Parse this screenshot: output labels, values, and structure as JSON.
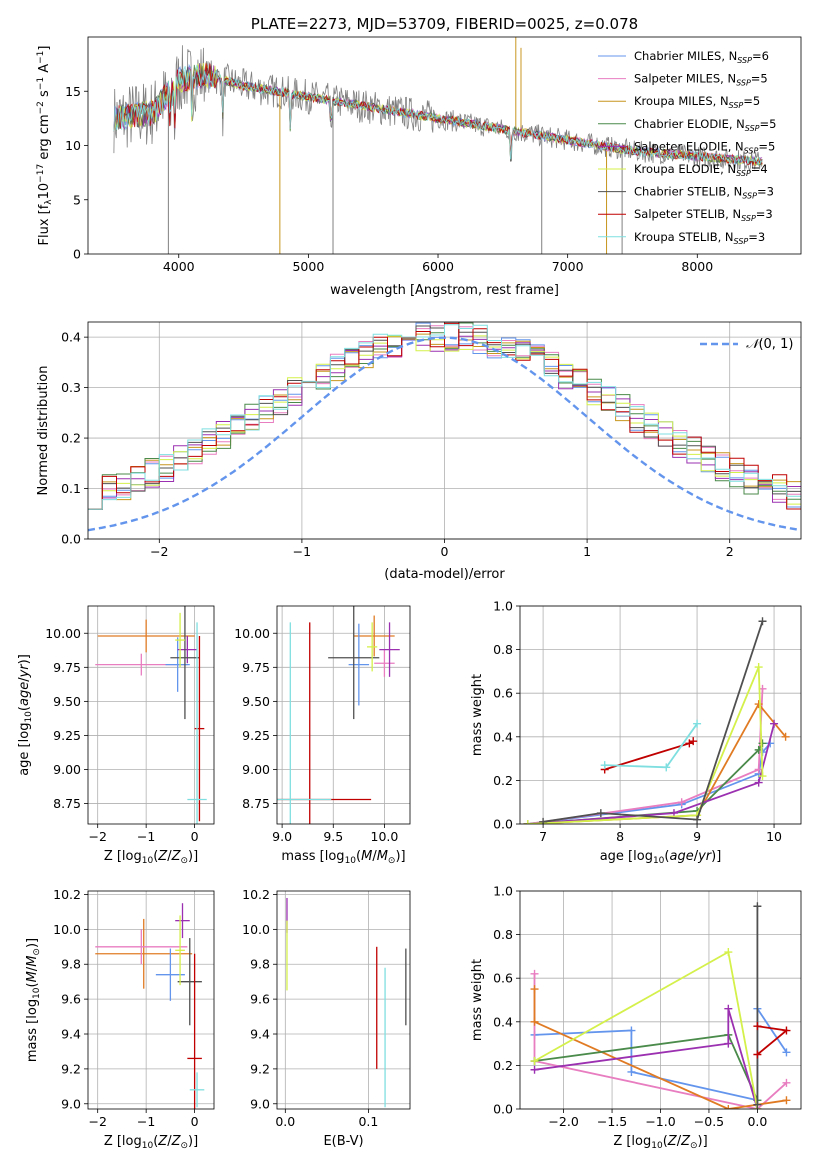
{
  "chart_data": [
    {
      "id": "spectrum",
      "type": "line",
      "title": "PLATE=2273, MJD=53709, FIBERID=0025, z=0.078",
      "xlabel": "wavelength [Angstrom, rest frame]",
      "ylabel": "Flux [fλ10⁻¹⁷ erg cm⁻² s⁻¹ A⁻¹]",
      "xlim": [
        3300,
        8800
      ],
      "ylim": [
        0,
        20
      ],
      "xticks": [
        4000,
        5000,
        6000,
        7000,
        8000
      ],
      "yticks": [
        0,
        5,
        10,
        15
      ],
      "grid": false,
      "legend_position": "top-right",
      "data_color": "#808080",
      "continuum": [
        [
          3500,
          12.5
        ],
        [
          3800,
          13
        ],
        [
          4000,
          16
        ],
        [
          4200,
          16.5
        ],
        [
          4500,
          15.5
        ],
        [
          5000,
          14.5
        ],
        [
          5500,
          13.5
        ],
        [
          6000,
          12.5
        ],
        [
          6500,
          11.5
        ],
        [
          7000,
          10.5
        ],
        [
          7500,
          9.5
        ],
        [
          8000,
          9
        ],
        [
          8500,
          8.5
        ]
      ],
      "absorption_lines": [
        3934,
        3969,
        4102,
        4340,
        4861,
        5175,
        6563
      ],
      "series": [
        {
          "name": "Chabrier MILES, N",
          "sub": "SSP",
          "suffix": "=6",
          "color": "#6495ed"
        },
        {
          "name": "Salpeter MILES, N",
          "sub": "SSP",
          "suffix": "=5",
          "color": "#e87dc0"
        },
        {
          "name": "Kroupa MILES, N",
          "sub": "SSP",
          "suffix": "=5",
          "color": "#c8961e"
        },
        {
          "name": "Chabrier ELODIE, N",
          "sub": "SSP",
          "suffix": "=5",
          "color": "#4a8a4a"
        },
        {
          "name": "Salpeter ELODIE, N",
          "sub": "SSP",
          "suffix": "=5",
          "color": "#9b30b0"
        },
        {
          "name": "Kroupa ELODIE, N",
          "sub": "SSP",
          "suffix": "=4",
          "color": "#d4f04a"
        },
        {
          "name": "Chabrier STELIB, N",
          "sub": "SSP",
          "suffix": "=3",
          "color": "#505050"
        },
        {
          "name": "Salpeter STELIB, N",
          "sub": "SSP",
          "suffix": "=3",
          "color": "#c00000"
        },
        {
          "name": "Kroupa STELIB, N",
          "sub": "SSP",
          "suffix": "=3",
          "color": "#7fdfe0"
        }
      ]
    },
    {
      "id": "residuals",
      "type": "line",
      "xlabel": "(data-model)/error",
      "ylabel": "Normed distribution",
      "xlim": [
        -2.5,
        2.5
      ],
      "ylim": [
        0,
        0.43
      ],
      "xticks": [
        -2,
        -1,
        0,
        1,
        2
      ],
      "yticks": [
        0.0,
        0.1,
        0.2,
        0.3,
        0.4
      ],
      "grid": true,
      "legend_position": "top-right",
      "gaussian": {
        "label": "N(0,1)",
        "color": "#6495ed",
        "mean": 0,
        "sigma": 1
      },
      "histogram_colors": [
        "#6495ed",
        "#e87dc0",
        "#c8961e",
        "#4a8a4a",
        "#9b30b0",
        "#d4f04a",
        "#505050",
        "#c00000",
        "#7fdfe0"
      ]
    },
    {
      "id": "age_vs_Z",
      "type": "scatter",
      "xlabel": "Z [log10(Z/Z☉)]",
      "ylabel": "age  [log10(age/yr)]",
      "xlim": [
        -2.2,
        0.4
      ],
      "ylim": [
        8.6,
        10.2
      ],
      "xticks": [
        -2,
        -1,
        0
      ],
      "yticks": [
        8.75,
        9.0,
        9.25,
        9.5,
        9.75,
        10.0
      ],
      "grid": true,
      "points": [
        {
          "x": -1.0,
          "xerr": 1.0,
          "y": 9.98,
          "yerr": 0.12,
          "color": "#e07b24"
        },
        {
          "x": -1.1,
          "xerr": 0.95,
          "y": 9.77,
          "yerr": 0.08,
          "color": "#e87dc0"
        },
        {
          "x": -0.35,
          "xerr": 0.25,
          "y": 9.77,
          "yerr": 0.2,
          "color": "#6495ed"
        },
        {
          "x": -0.15,
          "xerr": 0.2,
          "y": 9.88,
          "yerr": 0.1,
          "color": "#9b30b0"
        },
        {
          "x": -0.2,
          "xerr": 0.3,
          "y": 9.82,
          "yerr": 0.45,
          "color": "#505050"
        },
        {
          "x": -0.3,
          "xerr": 0.1,
          "y": 9.95,
          "yerr": 0.2,
          "color": "#d4f04a"
        },
        {
          "x": 0.1,
          "xerr": 0.1,
          "y": 9.3,
          "yerr": 0.68,
          "color": "#c00000"
        },
        {
          "x": 0.05,
          "xerr": 0.2,
          "y": 8.78,
          "yerr": 1.3,
          "color": "#7fdfe0"
        }
      ]
    },
    {
      "id": "age_vs_mass",
      "type": "scatter",
      "xlabel": "mass [log10(M/M☉)]",
      "ylabel": "",
      "xlim": [
        8.95,
        10.25
      ],
      "ylim": [
        8.6,
        10.2
      ],
      "xticks": [
        9.0,
        9.5,
        10.0
      ],
      "yticks": [
        8.75,
        9.0,
        9.25,
        9.5,
        9.75,
        10.0
      ],
      "grid": true,
      "points": [
        {
          "x": 9.9,
          "xerr": 0.2,
          "y": 9.98,
          "yerr": 0.15,
          "color": "#e07b24"
        },
        {
          "x": 10.0,
          "xerr": 0.1,
          "y": 9.78,
          "yerr": 0.1,
          "color": "#e87dc0"
        },
        {
          "x": 9.75,
          "xerr": 0.1,
          "y": 9.77,
          "yerr": 0.3,
          "color": "#6495ed"
        },
        {
          "x": 10.05,
          "xerr": 0.1,
          "y": 9.88,
          "yerr": 0.2,
          "color": "#9b30b0"
        },
        {
          "x": 9.7,
          "xerr": 0.25,
          "y": 9.82,
          "yerr": 0.45,
          "color": "#505050"
        },
        {
          "x": 9.88,
          "xerr": 0.05,
          "y": 9.9,
          "yerr": 0.18,
          "color": "#d4f04a"
        },
        {
          "x": 9.27,
          "xerr": 0.6,
          "y": 8.78,
          "yerr": 1.3,
          "color": "#c00000"
        },
        {
          "x": 9.08,
          "xerr": 0.4,
          "y": 8.78,
          "yerr": 1.3,
          "color": "#7fdfe0"
        }
      ]
    },
    {
      "id": "weight_vs_age",
      "type": "line",
      "xlabel": "age  [log10(age/yr)]",
      "ylabel": "mass weight",
      "xlim": [
        6.7,
        10.35
      ],
      "ylim": [
        0,
        1.0
      ],
      "xticks": [
        7,
        8,
        9,
        10
      ],
      "yticks": [
        0.0,
        0.2,
        0.4,
        0.6,
        0.8,
        1.0
      ],
      "grid": true,
      "series": [
        {
          "color": "#6495ed",
          "points": [
            [
              6.8,
              0.0
            ],
            [
              8.8,
              0.09
            ],
            [
              9.8,
              0.23
            ],
            [
              9.85,
              0.33
            ],
            [
              9.95,
              0.37
            ]
          ]
        },
        {
          "color": "#e87dc0",
          "points": [
            [
              6.8,
              0.0
            ],
            [
              8.8,
              0.1
            ],
            [
              9.8,
              0.25
            ],
            [
              9.85,
              0.62
            ]
          ]
        },
        {
          "color": "#e07b24",
          "points": [
            [
              6.8,
              0.0
            ],
            [
              9.0,
              0.04
            ],
            [
              9.8,
              0.55
            ],
            [
              10.15,
              0.4
            ]
          ]
        },
        {
          "color": "#4a8a4a",
          "points": [
            [
              6.8,
              0.0
            ],
            [
              9.0,
              0.06
            ],
            [
              9.8,
              0.34
            ],
            [
              9.85,
              0.37
            ]
          ]
        },
        {
          "color": "#9b30b0",
          "points": [
            [
              6.8,
              0.0
            ],
            [
              8.7,
              0.05
            ],
            [
              9.8,
              0.19
            ],
            [
              10.0,
              0.46
            ]
          ]
        },
        {
          "color": "#d4f04a",
          "points": [
            [
              6.8,
              0.0
            ],
            [
              9.0,
              0.04
            ],
            [
              9.8,
              0.72
            ],
            [
              9.85,
              0.22
            ]
          ]
        },
        {
          "color": "#505050",
          "points": [
            [
              7.0,
              0.01
            ],
            [
              7.75,
              0.05
            ],
            [
              9.0,
              0.02
            ],
            [
              9.85,
              0.93
            ]
          ]
        },
        {
          "color": "#c00000",
          "points": [
            [
              7.8,
              0.25
            ],
            [
              8.9,
              0.37
            ],
            [
              8.95,
              0.38
            ]
          ]
        },
        {
          "color": "#7fdfe0",
          "points": [
            [
              7.8,
              0.27
            ],
            [
              8.6,
              0.26
            ],
            [
              9.0,
              0.46
            ]
          ]
        }
      ]
    },
    {
      "id": "mass_vs_Z",
      "type": "scatter",
      "xlabel": "Z [log10(Z/Z☉)]",
      "ylabel": "mass [log10(M/M☉)]",
      "xlim": [
        -2.2,
        0.4
      ],
      "ylim": [
        8.97,
        10.22
      ],
      "xticks": [
        -2,
        -1,
        0
      ],
      "yticks": [
        9.0,
        9.2,
        9.4,
        9.6,
        9.8,
        10.0,
        10.2
      ],
      "grid": true,
      "points": [
        {
          "x": -1.05,
          "xerr": 1.0,
          "y": 9.86,
          "yerr": 0.2,
          "color": "#e07b24"
        },
        {
          "x": -1.1,
          "xerr": 0.95,
          "y": 9.9,
          "yerr": 0.1,
          "color": "#e87dc0"
        },
        {
          "x": -0.5,
          "xerr": 0.3,
          "y": 9.74,
          "yerr": 0.15,
          "color": "#6495ed"
        },
        {
          "x": -0.25,
          "xerr": 0.15,
          "y": 10.05,
          "yerr": 0.1,
          "color": "#9b30b0"
        },
        {
          "x": -0.1,
          "xerr": 0.25,
          "y": 9.7,
          "yerr": 0.25,
          "color": "#505050"
        },
        {
          "x": -0.3,
          "xerr": 0.1,
          "y": 9.88,
          "yerr": 0.2,
          "color": "#d4f04a"
        },
        {
          "x": 0.0,
          "xerr": 0.15,
          "y": 9.26,
          "yerr": 0.6,
          "color": "#c00000"
        },
        {
          "x": 0.05,
          "xerr": 0.15,
          "y": 9.08,
          "yerr": 0.1,
          "color": "#7fdfe0"
        }
      ]
    },
    {
      "id": "mass_vs_EBV",
      "type": "scatter",
      "xlabel": "E(B-V)",
      "ylabel": "",
      "xlim": [
        -0.01,
        0.15
      ],
      "ylim": [
        8.97,
        10.22
      ],
      "xticks": [
        0.0,
        0.1
      ],
      "yticks": [
        9.0,
        9.2,
        9.4,
        9.6,
        9.8,
        10.0,
        10.2
      ],
      "grid": true,
      "points": [
        {
          "x": 0.002,
          "xerr": 0,
          "y": 10.08,
          "yerr": 0.1,
          "color": "#9b30b0"
        },
        {
          "x": 0.002,
          "xerr": 0,
          "y": 9.85,
          "yerr": 0.2,
          "color": "#d4f04a"
        },
        {
          "x": 0.11,
          "xerr": 0,
          "y": 9.55,
          "yerr": 0.35,
          "color": "#c00000"
        },
        {
          "x": 0.12,
          "xerr": 0,
          "y": 9.38,
          "yerr": 0.4,
          "color": "#7fdfe0"
        },
        {
          "x": 0.145,
          "xerr": 0,
          "y": 9.67,
          "yerr": 0.22,
          "color": "#505050"
        }
      ]
    },
    {
      "id": "weight_vs_Z",
      "type": "line",
      "xlabel": "Z [log10(Z/Z☉)]",
      "ylabel": "mass weight",
      "xlim": [
        -2.45,
        0.45
      ],
      "ylim": [
        0,
        1.0
      ],
      "xticks": [
        -2.0,
        -1.5,
        -1.0,
        -0.5,
        0.0
      ],
      "yticks": [
        0.0,
        0.2,
        0.4,
        0.6,
        0.8,
        1.0
      ],
      "grid": true,
      "series": [
        {
          "color": "#6495ed",
          "points": [
            [
              -2.3,
              0.34
            ],
            [
              -1.3,
              0.36
            ],
            [
              -1.3,
              0.17
            ],
            [
              0.0,
              0.04
            ],
            [
              0.0,
              0.46
            ],
            [
              0.3,
              0.26
            ]
          ]
        },
        {
          "color": "#e87dc0",
          "points": [
            [
              -2.3,
              0.62
            ],
            [
              -2.3,
              0.22
            ],
            [
              0.0,
              0.0
            ],
            [
              0.3,
              0.12
            ]
          ]
        },
        {
          "color": "#e07b24",
          "points": [
            [
              -2.3,
              0.55
            ],
            [
              -2.3,
              0.4
            ],
            [
              -0.3,
              0.0
            ],
            [
              0.3,
              0.04
            ]
          ]
        },
        {
          "color": "#4a8a4a",
          "points": [
            [
              -2.3,
              0.22
            ],
            [
              -0.3,
              0.34
            ],
            [
              0.0,
              0.04
            ]
          ]
        },
        {
          "color": "#9b30b0",
          "points": [
            [
              -2.3,
              0.18
            ],
            [
              -0.3,
              0.3
            ],
            [
              -0.3,
              0.46
            ],
            [
              0.0,
              0.0
            ]
          ]
        },
        {
          "color": "#d4f04a",
          "points": [
            [
              -2.3,
              0.22
            ],
            [
              -0.3,
              0.72
            ],
            [
              0.0,
              0.0
            ]
          ]
        },
        {
          "color": "#505050",
          "points": [
            [
              0.0,
              0.93
            ],
            [
              0.0,
              0.02
            ]
          ]
        },
        {
          "color": "#c00000",
          "points": [
            [
              0.0,
              0.38
            ],
            [
              0.3,
              0.36
            ],
            [
              0.0,
              0.25
            ]
          ]
        }
      ]
    }
  ]
}
